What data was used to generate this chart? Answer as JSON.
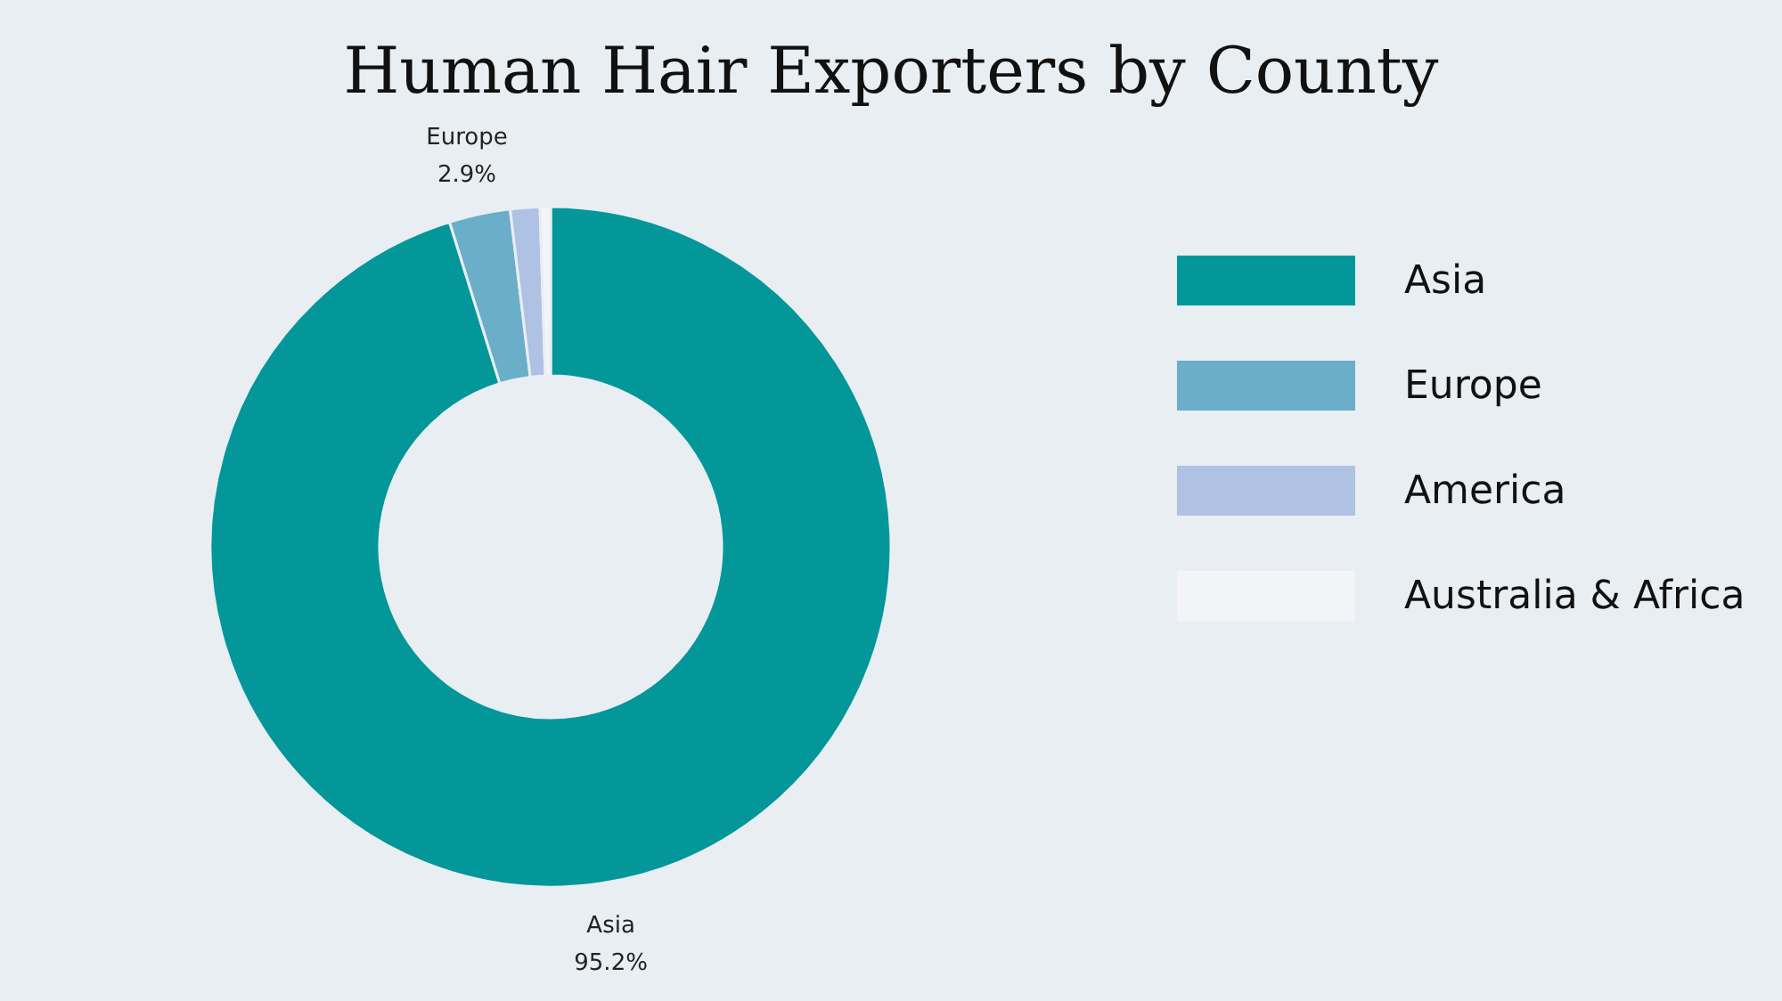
{
  "chart_data": {
    "type": "donut",
    "title": "Human Hair Exporters by County",
    "categories": [
      "Asia",
      "Europe",
      "America",
      "Australia & Africa"
    ],
    "values": [
      95.2,
      2.9,
      1.4,
      0.5
    ],
    "colors": [
      "#03979a",
      "#6aaec9",
      "#afc2e3",
      "#f2f4f8"
    ],
    "value_labels": [
      "95.2%",
      "2.9%",
      null,
      null
    ],
    "legend": "right"
  }
}
